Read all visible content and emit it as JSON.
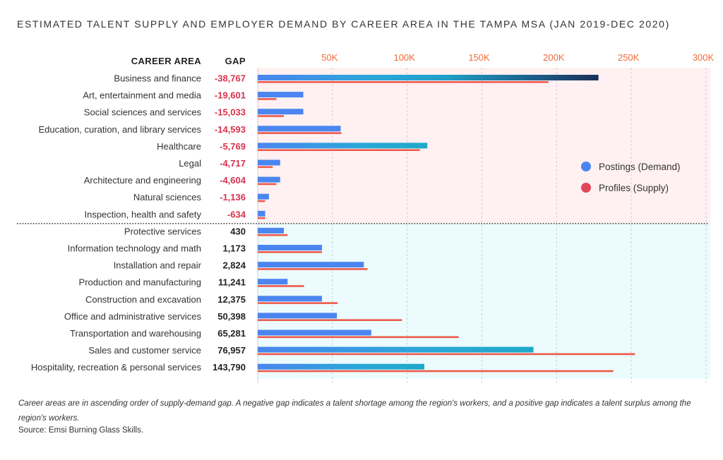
{
  "title": "ESTIMATED TALENT SUPPLY AND EMPLOYER DEMAND BY CAREER AREA IN THE TAMPA MSA (JAN 2019-DEC 2020)",
  "footnote": "Career areas are in ascending order of supply-demand gap. A negative gap indicates a talent shortage among the region's workers, and a positive gap indicates a talent surplus among the region's workers.",
  "source": "Source: Emsi Burning Glass Skills.",
  "colors": {
    "demand": "#4b86f0",
    "supply": "#ec5a4b",
    "gap_negative": "#d8324d",
    "gap_positive": "#222222",
    "shortage_bg": "#fff0f2",
    "surplus_bg": "#ecfbfd"
  },
  "chart_data": {
    "type": "bar",
    "orientation": "horizontal",
    "title": "ESTIMATED TALENT SUPPLY AND EMPLOYER DEMAND BY CAREER AREA IN THE TAMPA MSA (JAN 2019-DEC 2020)",
    "column_headers": {
      "category": "CAREER AREA",
      "gap": "GAP"
    },
    "xlim": [
      0,
      300000
    ],
    "x_ticks": [
      50000,
      100000,
      150000,
      200000,
      250000,
      300000
    ],
    "x_tick_labels": [
      "50K",
      "100K",
      "150K",
      "200K",
      "250K",
      "300K"
    ],
    "legend": {
      "position": "right",
      "entries": [
        {
          "label": "Postings (Demand)",
          "color": "#4b86f0"
        },
        {
          "label": "Profiles (Supply)",
          "color": "#e0475a"
        }
      ]
    },
    "categories": [
      "Business and finance",
      "Art, entertainment and media",
      "Social sciences and services",
      "Education, curation, and library services",
      "Healthcare",
      "Legal",
      "Architecture and engineering",
      "Natural sciences",
      "Inspection, health and safety",
      "Protective services",
      "Information technology and math",
      "Installation and repair",
      "Production and manufacturing",
      "Construction and excavation",
      "Office and administrative services",
      "Transportation and warehousing",
      "Sales and customer service",
      "Hospitality, recreation & personal services"
    ],
    "gap_labels": [
      "-38,767",
      "-19,601",
      "-15,033",
      "-14,593",
      "-5,769",
      "-4,717",
      "-4,604",
      "-1,136",
      "-634",
      "430",
      "1,173",
      "2,824",
      "11,241",
      "12,375",
      "50,398",
      "65,281",
      "76,957",
      "143,790"
    ],
    "gap": [
      -38767,
      -19601,
      -15033,
      -14593,
      -5769,
      -4717,
      -4604,
      -1136,
      -634,
      430,
      1173,
      2824,
      11241,
      12375,
      50398,
      65281,
      76957,
      143790
    ],
    "series": [
      {
        "name": "Postings (Demand)",
        "values": [
          228000,
          30500,
          30500,
          55500,
          113500,
          15000,
          15000,
          7500,
          5000,
          17500,
          43000,
          71000,
          20000,
          43000,
          53000,
          76000,
          184500,
          111500
        ]
      },
      {
        "name": "Profiles (Supply)",
        "values": [
          194500,
          12500,
          17500,
          56000,
          108500,
          10000,
          12500,
          5000,
          5000,
          20000,
          43000,
          73500,
          31000,
          53500,
          96500,
          134500,
          252500,
          238000
        ]
      }
    ]
  }
}
